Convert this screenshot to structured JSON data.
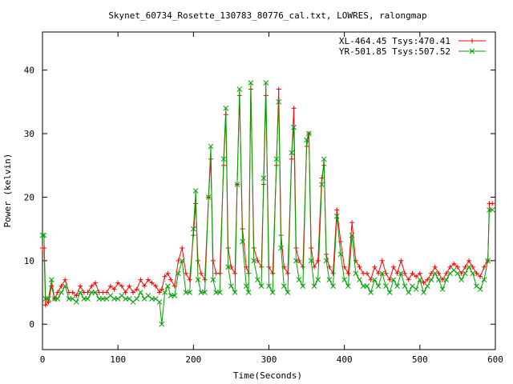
{
  "chart_data": {
    "type": "line",
    "title": "Skynet_60734_Rosette_130783_80776_cal.txt, LOWRES, ralongmap",
    "xlabel": "Time(Seconds)",
    "ylabel": "Power (kelvin)",
    "xlim": [
      0,
      600
    ],
    "ylim": [
      -4,
      46
    ],
    "x_ticks": [
      0,
      100,
      200,
      300,
      400,
      500,
      600
    ],
    "y_ticks": [
      0,
      10,
      20,
      30,
      40
    ],
    "grid": false,
    "legend_position": "top-right",
    "series": [
      {
        "name": "XL-464.45 Tsys:470.41",
        "color": "#ff0000",
        "marker": "plus",
        "x": [
          0,
          2,
          4,
          8,
          12,
          16,
          20,
          25,
          30,
          35,
          40,
          45,
          50,
          55,
          60,
          65,
          70,
          75,
          80,
          85,
          90,
          95,
          100,
          105,
          110,
          115,
          120,
          125,
          130,
          135,
          140,
          145,
          150,
          155,
          158,
          162,
          166,
          170,
          175,
          180,
          185,
          190,
          195,
          200,
          203,
          206,
          210,
          215,
          220,
          223,
          226,
          230,
          235,
          240,
          243,
          246,
          250,
          255,
          258,
          261,
          265,
          270,
          273,
          276,
          280,
          285,
          290,
          293,
          296,
          300,
          305,
          310,
          313,
          316,
          320,
          325,
          330,
          333,
          336,
          340,
          345,
          350,
          353,
          356,
          360,
          365,
          370,
          373,
          376,
          380,
          385,
          390,
          395,
          400,
          405,
          410,
          415,
          420,
          425,
          430,
          435,
          440,
          445,
          450,
          455,
          460,
          465,
          470,
          475,
          480,
          485,
          490,
          495,
          500,
          505,
          510,
          515,
          520,
          525,
          530,
          535,
          540,
          545,
          550,
          555,
          560,
          565,
          570,
          575,
          580,
          585,
          590,
          592,
          596
        ],
        "y": [
          12,
          12,
          3,
          3.5,
          6,
          4,
          5,
          6,
          7,
          5,
          5,
          4.5,
          6,
          5,
          5,
          6,
          6.5,
          5,
          5,
          5,
          6,
          5.5,
          6.5,
          6,
          5,
          6,
          5,
          5.5,
          7,
          6,
          7,
          6.5,
          6,
          5,
          5.5,
          7.5,
          8,
          7,
          6,
          10,
          12,
          8,
          7,
          14,
          19,
          10,
          8,
          7,
          20,
          26,
          10,
          8,
          8,
          25,
          33,
          12,
          9,
          8,
          22,
          36,
          15,
          9,
          8,
          37,
          12,
          10,
          9,
          22,
          36,
          9,
          8,
          25,
          37,
          14,
          9,
          8,
          26,
          34,
          12,
          10,
          9,
          28,
          30,
          12,
          9,
          10,
          23,
          25,
          11,
          9,
          8,
          18,
          13,
          9,
          8,
          16,
          10,
          9,
          8,
          8,
          7,
          9,
          8,
          10,
          8,
          7,
          9,
          8,
          10,
          8,
          7,
          8,
          7.5,
          8,
          6.5,
          7,
          8,
          9,
          8,
          7,
          8,
          9,
          9.5,
          9,
          8,
          9,
          10,
          9,
          8,
          7.5,
          9,
          10,
          19,
          19
        ]
      },
      {
        "name": "YR-501.85 Tsys:507.52",
        "color": "#00a000",
        "marker": "x",
        "x": [
          0,
          2,
          4,
          8,
          12,
          16,
          20,
          25,
          30,
          35,
          40,
          45,
          50,
          55,
          60,
          65,
          70,
          75,
          80,
          85,
          90,
          95,
          100,
          105,
          110,
          115,
          120,
          125,
          130,
          135,
          140,
          145,
          150,
          155,
          158,
          162,
          166,
          170,
          175,
          180,
          185,
          190,
          195,
          200,
          203,
          206,
          210,
          215,
          220,
          223,
          226,
          230,
          235,
          240,
          243,
          246,
          250,
          255,
          258,
          261,
          265,
          270,
          273,
          276,
          280,
          285,
          290,
          293,
          296,
          300,
          305,
          310,
          313,
          316,
          320,
          325,
          330,
          333,
          336,
          340,
          345,
          350,
          353,
          356,
          360,
          365,
          370,
          373,
          376,
          380,
          385,
          390,
          395,
          400,
          405,
          410,
          415,
          420,
          425,
          430,
          435,
          440,
          445,
          450,
          455,
          460,
          465,
          470,
          475,
          480,
          485,
          490,
          495,
          500,
          505,
          510,
          515,
          520,
          525,
          530,
          535,
          540,
          545,
          550,
          555,
          560,
          565,
          570,
          575,
          580,
          585,
          590,
          592,
          596
        ],
        "y": [
          14,
          14,
          4,
          4,
          7,
          4,
          4,
          5,
          6,
          4,
          4,
          3.5,
          5,
          4,
          4,
          5,
          5,
          4,
          4,
          4,
          4.5,
          4,
          4,
          4.5,
          4,
          4,
          3.5,
          4,
          5,
          4,
          4.5,
          4,
          4,
          3.5,
          0,
          5,
          6,
          4.5,
          4.5,
          8,
          10,
          5,
          5,
          15,
          21,
          7,
          5,
          5,
          20,
          28,
          7,
          5,
          5,
          26,
          34,
          9,
          6,
          5,
          22,
          37,
          13,
          6,
          5,
          38,
          10,
          7,
          6,
          23,
          38,
          6,
          5,
          26,
          35,
          12,
          6,
          5,
          27,
          31,
          10,
          7,
          6,
          29,
          30,
          10,
          6,
          7,
          22,
          26,
          10,
          7,
          6,
          17,
          11,
          7,
          6,
          14,
          8,
          7,
          6,
          6,
          5,
          7,
          6,
          8,
          6,
          5,
          7,
          6,
          8,
          6,
          5,
          6,
          5.5,
          7,
          5,
          6,
          7,
          8,
          7,
          5.5,
          7,
          8,
          8.5,
          8,
          7,
          8,
          9,
          8,
          6,
          5.5,
          7,
          10,
          18,
          18
        ]
      }
    ]
  }
}
